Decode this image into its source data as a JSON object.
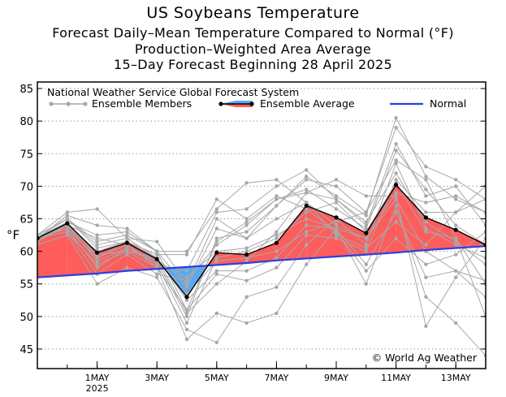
{
  "titles": {
    "line1": "US Soybeans Temperature",
    "line2": "Forecast Daily–Mean Temperature Compared to Normal (°F)",
    "line3": "Production–Weighted Area Average",
    "line4": "15–Day Forecast Beginning 28 April 2025"
  },
  "chart_data": {
    "type": "line",
    "ylabel": "°F",
    "ylim": [
      42,
      86
    ],
    "yticks": [
      45,
      50,
      55,
      60,
      65,
      70,
      75,
      80,
      85
    ],
    "xlim": [
      -1,
      14
    ],
    "xticks": [
      {
        "x": 1,
        "label": "1MAY",
        "sublabel": "2025"
      },
      {
        "x": 3,
        "label": "3MAY"
      },
      {
        "x": 5,
        "label": "5MAY"
      },
      {
        "x": 7,
        "label": "7MAY"
      },
      {
        "x": 9,
        "label": "9MAY"
      },
      {
        "x": 11,
        "label": "11MAY"
      },
      {
        "x": 13,
        "label": "13MAY"
      }
    ],
    "grid": "horizontal dotted",
    "legend_position": "top",
    "legend": {
      "title": "National Weather Service Global Forecast System",
      "members_label": "Ensemble Members",
      "average_label": "Ensemble Average",
      "normal_label": "Normal"
    },
    "copyright": "© World Ag Weather",
    "colors": {
      "above_normal": "#ff5c5c",
      "below_normal": "#5aa9f0",
      "normal_line": "#2b3fe0",
      "members": "#a8a8a8",
      "average": "#000000"
    },
    "x": [
      -1,
      0,
      1,
      2,
      3,
      4,
      5,
      6,
      7,
      8,
      9,
      10,
      11,
      12,
      13,
      14
    ],
    "series": [
      {
        "name": "Ensemble Average",
        "values": [
          62.0,
          64.3,
          59.8,
          61.3,
          58.8,
          53.0,
          59.8,
          59.5,
          61.3,
          67.0,
          65.2,
          62.8,
          70.2,
          65.2,
          63.3,
          61.0
        ]
      },
      {
        "name": "Normal",
        "values": [
          56.0,
          56.3,
          56.6,
          57.0,
          57.3,
          57.6,
          57.9,
          58.2,
          58.6,
          58.9,
          59.2,
          59.5,
          59.8,
          60.2,
          60.5,
          60.8
        ]
      }
    ],
    "members": [
      [
        62.5,
        66.0,
        66.5,
        62.0,
        61.5,
        55.0,
        65.0,
        62.0,
        67.0,
        71.0,
        70.0,
        66.0,
        79.0,
        73.0,
        71.0,
        68.0
      ],
      [
        62.0,
        65.5,
        64.0,
        63.5,
        60.0,
        51.0,
        61.5,
        64.5,
        68.0,
        69.0,
        68.0,
        64.0,
        76.5,
        68.5,
        70.0,
        64.0
      ],
      [
        61.5,
        64.0,
        62.0,
        61.0,
        58.0,
        49.0,
        59.0,
        60.0,
        62.0,
        66.0,
        67.5,
        63.0,
        70.5,
        63.0,
        62.0,
        55.0
      ],
      [
        62.0,
        63.0,
        58.0,
        60.0,
        57.5,
        46.5,
        50.5,
        49.0,
        50.5,
        58.0,
        63.5,
        58.0,
        66.0,
        56.0,
        57.0,
        53.0
      ],
      [
        61.0,
        62.5,
        55.0,
        57.5,
        56.0,
        48.0,
        46.0,
        53.0,
        54.5,
        61.0,
        65.0,
        61.0,
        73.5,
        63.5,
        61.0,
        59.0
      ],
      [
        62.0,
        64.0,
        60.0,
        61.5,
        59.0,
        52.5,
        57.0,
        57.0,
        59.0,
        64.0,
        63.5,
        55.0,
        67.0,
        53.0,
        49.0,
        44.0
      ],
      [
        62.5,
        63.5,
        57.5,
        60.5,
        58.5,
        50.0,
        62.0,
        63.0,
        67.0,
        71.5,
        68.5,
        65.5,
        80.5,
        71.5,
        68.0,
        66.0
      ],
      [
        62.0,
        65.0,
        61.5,
        62.5,
        60.0,
        54.5,
        63.5,
        62.0,
        65.0,
        67.5,
        64.0,
        62.0,
        68.0,
        60.0,
        57.0,
        55.5
      ],
      [
        61.5,
        64.5,
        59.0,
        61.0,
        57.5,
        51.0,
        56.5,
        55.5,
        57.5,
        62.5,
        62.0,
        60.0,
        71.0,
        66.0,
        66.0,
        68.0
      ],
      [
        62.0,
        63.0,
        56.5,
        59.5,
        56.5,
        55.5,
        61.0,
        64.0,
        68.0,
        69.5,
        66.5,
        63.5,
        75.5,
        69.5,
        64.0,
        61.0
      ],
      [
        62.0,
        64.0,
        58.5,
        60.5,
        58.0,
        57.0,
        66.0,
        66.5,
        70.0,
        72.5,
        68.0,
        64.5,
        72.0,
        64.5,
        61.5,
        58.0
      ],
      [
        62.5,
        65.0,
        60.5,
        61.5,
        59.5,
        59.5,
        68.0,
        65.0,
        68.5,
        66.5,
        63.0,
        57.0,
        62.0,
        58.0,
        59.5,
        63.0
      ],
      [
        62.0,
        64.5,
        62.5,
        63.0,
        60.0,
        60.0,
        66.5,
        70.5,
        71.0,
        67.5,
        62.5,
        60.5,
        64.5,
        61.0,
        66.0,
        70.0
      ],
      [
        62.0,
        63.5,
        59.0,
        61.5,
        58.5,
        56.0,
        60.0,
        60.5,
        62.5,
        65.0,
        63.5,
        62.0,
        69.0,
        67.5,
        68.5,
        66.0
      ],
      [
        61.5,
        64.0,
        59.5,
        60.0,
        59.0,
        53.5,
        58.5,
        59.0,
        60.0,
        63.0,
        64.5,
        66.0,
        74.0,
        71.0,
        62.0,
        50.0
      ],
      [
        62.0,
        65.0,
        61.0,
        62.0,
        59.0,
        50.5,
        55.0,
        58.5,
        63.0,
        69.0,
        71.0,
        68.5,
        68.5,
        48.5,
        56.0,
        62.0
      ]
    ]
  }
}
